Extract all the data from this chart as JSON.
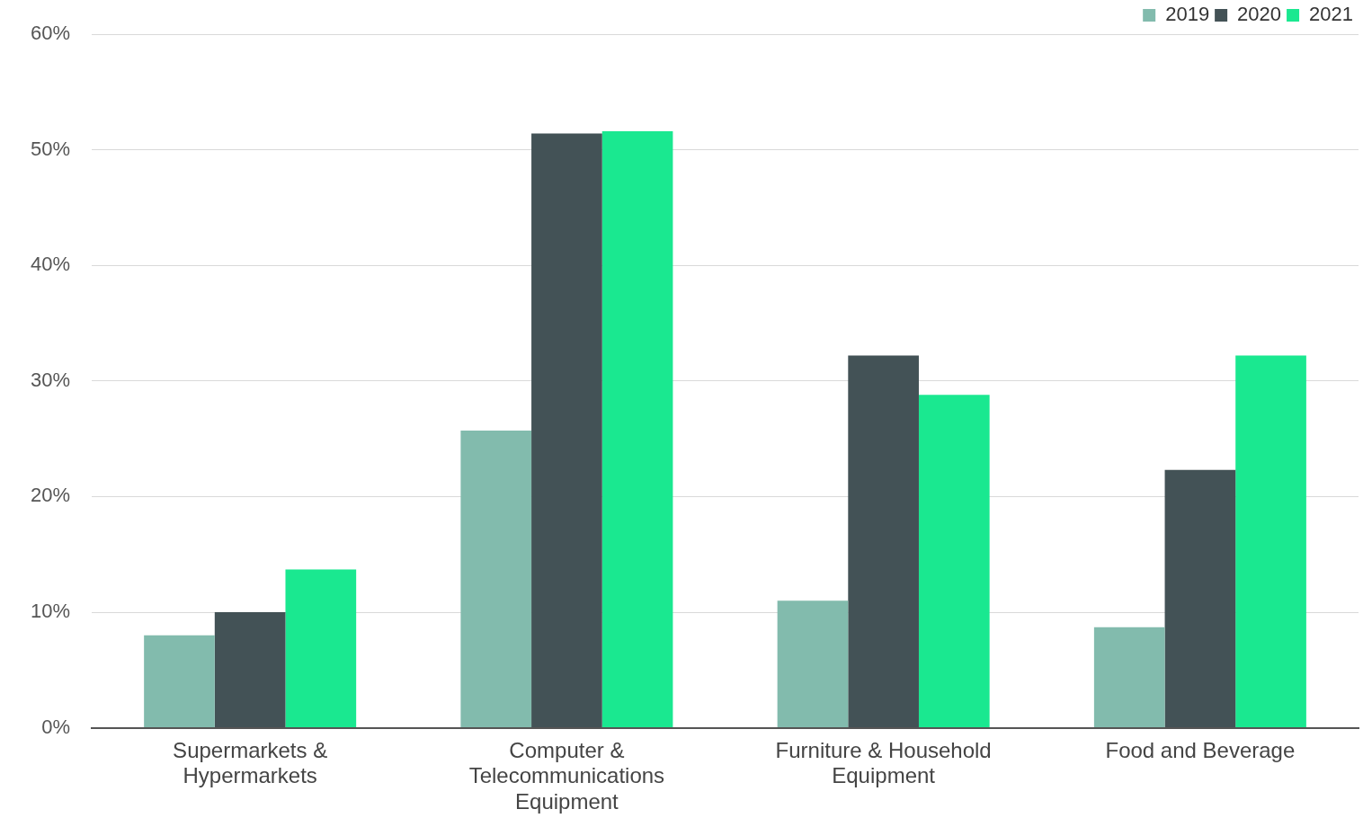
{
  "chart_data": {
    "type": "bar",
    "categories": [
      "Supermarkets & Hypermarkets",
      "Computer & Telecommunications Equipment",
      "Furniture & Household Equipment",
      "Food and Beverage"
    ],
    "series": [
      {
        "name": "2019",
        "color": "#82bbad",
        "values": [
          8.0,
          25.7,
          11.0,
          8.7
        ]
      },
      {
        "name": "2020",
        "color": "#435256",
        "values": [
          10.0,
          51.4,
          32.2,
          22.3
        ]
      },
      {
        "name": "2021",
        "color": "#1ae890",
        "values": [
          13.7,
          51.6,
          28.8,
          32.2
        ]
      }
    ],
    "ylim": [
      0,
      60
    ],
    "yticks": [
      {
        "value": 0,
        "label": "0%"
      },
      {
        "value": 10,
        "label": "10%"
      },
      {
        "value": 20,
        "label": "20%"
      },
      {
        "value": 30,
        "label": "30%"
      },
      {
        "value": 40,
        "label": "40%"
      },
      {
        "value": 50,
        "label": "50%"
      },
      {
        "value": 60,
        "label": "60%"
      }
    ],
    "grid": "y",
    "legend": "top right"
  }
}
